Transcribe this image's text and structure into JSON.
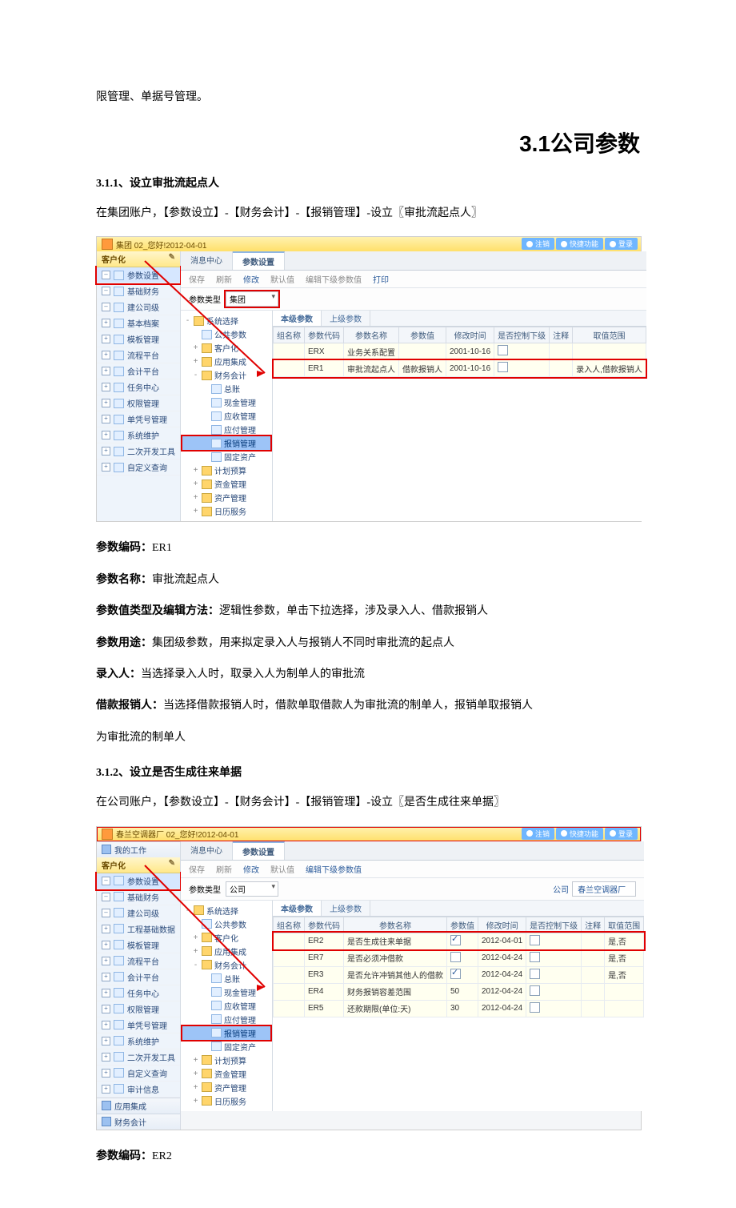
{
  "doc": {
    "top_line": "限管理、单据号管理。",
    "section_title": "3.1公司参数",
    "sub1_title": "3.1.1、设立审批流起点人",
    "sub1_intro": "在集团账户，【参数设立】-【财务会计】-【报销管理】-设立〖审批流起点人〗",
    "kv": {
      "code_label": "参数编码：",
      "code_val": "ER1",
      "name_label": "参数名称：",
      "name_val": "审批流起点人",
      "type_label": "参数值类型及编辑方法：",
      "type_val": "逻辑性参数，单击下拉选择，涉及录入人、借款报销人",
      "use_label": "参数用途：",
      "use_val": "集团级参数，用来拟定录入人与报销人不同时审批流的起点人",
      "in_label": "录入人：",
      "in_val": "当选择录入人时，取录入人为制单人的审批流",
      "bx_label": "借款报销人：",
      "bx_val": "当选择借款报销人时，借款单取借款人为审批流的制单人，报销单取报销人",
      "bx_val2": "为审批流的制单人"
    },
    "sub2_title": "3.1.2、设立是否生成往来单据",
    "sub2_intro": "在公司账户，【参数设立】-【财务会计】-【报销管理】-设立〖是否生成往来单据〗",
    "code2_label": "参数编码：",
    "code2_val": "ER2"
  },
  "shot1": {
    "title": "集团 02_您好!2012-04-01",
    "right_btns": [
      "注销",
      "快捷功能",
      "登录"
    ],
    "side_title": "客户化",
    "side_items": [
      "参数设置",
      "基础财务",
      "建公司级",
      "基本档案",
      "模板管理",
      "流程平台",
      "会计平台",
      "任务中心",
      "权限管理",
      "单凭号管理",
      "系统维护",
      "二次开发工具",
      "自定义查询"
    ],
    "side_selected_index": 0,
    "tabs": [
      "消息中心",
      "参数设置"
    ],
    "tabs_active": 1,
    "toolbar": [
      "保存",
      "刷新",
      "修改",
      "默认值",
      "编辑下级参数值",
      "打印"
    ],
    "toolbar_enabled": [
      false,
      false,
      true,
      false,
      false,
      true
    ],
    "param_label": "参数类型",
    "param_value": "集团",
    "tree": [
      {
        "t": "系统选择",
        "lvl": 0,
        "exp": "-",
        "ico": "fold"
      },
      {
        "t": "公共参数",
        "lvl": 1,
        "exp": "",
        "ico": "file"
      },
      {
        "t": "客户化",
        "lvl": 1,
        "exp": "+",
        "ico": "fold"
      },
      {
        "t": "应用集成",
        "lvl": 1,
        "exp": "+",
        "ico": "fold"
      },
      {
        "t": "财务会计",
        "lvl": 1,
        "exp": "-",
        "ico": "fold"
      },
      {
        "t": "总账",
        "lvl": 2,
        "exp": "",
        "ico": "file"
      },
      {
        "t": "现金管理",
        "lvl": 2,
        "exp": "",
        "ico": "file"
      },
      {
        "t": "应收管理",
        "lvl": 2,
        "exp": "",
        "ico": "file"
      },
      {
        "t": "应付管理",
        "lvl": 2,
        "exp": "",
        "ico": "file"
      },
      {
        "t": "报销管理",
        "lvl": 2,
        "exp": "",
        "ico": "file",
        "sel": true
      },
      {
        "t": "固定资产",
        "lvl": 2,
        "exp": "",
        "ico": "file"
      },
      {
        "t": "计划预算",
        "lvl": 1,
        "exp": "+",
        "ico": "fold"
      },
      {
        "t": "资金管理",
        "lvl": 1,
        "exp": "+",
        "ico": "fold"
      },
      {
        "t": "资产管理",
        "lvl": 1,
        "exp": "+",
        "ico": "fold"
      },
      {
        "t": "日历服务",
        "lvl": 1,
        "exp": "+",
        "ico": "fold"
      }
    ],
    "inner_tabs": [
      "本级参数",
      "上级参数"
    ],
    "inner_active": 0,
    "grid_cols": [
      "组名称",
      "参数代码",
      "参数名称",
      "参数值",
      "修改时间",
      "是否控制下级",
      "注释",
      "取值范围"
    ],
    "grid_rows": [
      {
        "cells": [
          "",
          "ERX",
          "业务关系配置",
          "",
          "2001-10-16",
          "cb",
          "",
          ""
        ],
        "hl": false
      },
      {
        "cells": [
          "",
          "ER1",
          "审批流起点人",
          "借款报销人",
          "2001-10-16",
          "cb",
          "",
          "录入人,借款报销人"
        ],
        "hl": true
      }
    ]
  },
  "shot2": {
    "title": "春兰空调器厂 02_您好!2012-04-01",
    "right_btns": [
      "注销",
      "快捷功能",
      "登录"
    ],
    "side_title_top": "我的工作",
    "side_title": "客户化",
    "side_items": [
      "参数设置",
      "基础财务",
      "建公司级",
      "工程基础数据",
      "模板管理",
      "流程平台",
      "会计平台",
      "任务中心",
      "权限管理",
      "单凭号管理",
      "系统维护",
      "二次开发工具",
      "自定义查询",
      "审计信息"
    ],
    "side_selected_index": 0,
    "side_footer": [
      "应用集成",
      "财务会计"
    ],
    "tabs": [
      "消息中心",
      "参数设置"
    ],
    "tabs_active": 1,
    "toolbar": [
      "保存",
      "刷新",
      "修改",
      "默认值",
      "编辑下级参数值"
    ],
    "toolbar_enabled": [
      false,
      false,
      true,
      false,
      true
    ],
    "param_label": "参数类型",
    "param_value": "公司",
    "company_label": "公司",
    "company_value": "春兰空调器厂",
    "tree": [
      {
        "t": "系统选择",
        "lvl": 0,
        "exp": "-",
        "ico": "fold"
      },
      {
        "t": "公共参数",
        "lvl": 1,
        "exp": "",
        "ico": "file"
      },
      {
        "t": "客户化",
        "lvl": 1,
        "exp": "+",
        "ico": "fold"
      },
      {
        "t": "应用集成",
        "lvl": 1,
        "exp": "+",
        "ico": "fold"
      },
      {
        "t": "财务会计",
        "lvl": 1,
        "exp": "-",
        "ico": "fold"
      },
      {
        "t": "总账",
        "lvl": 2,
        "exp": "",
        "ico": "file"
      },
      {
        "t": "现金管理",
        "lvl": 2,
        "exp": "",
        "ico": "file"
      },
      {
        "t": "应收管理",
        "lvl": 2,
        "exp": "",
        "ico": "file"
      },
      {
        "t": "应付管理",
        "lvl": 2,
        "exp": "",
        "ico": "file"
      },
      {
        "t": "报销管理",
        "lvl": 2,
        "exp": "",
        "ico": "file",
        "sel": true
      },
      {
        "t": "固定资产",
        "lvl": 2,
        "exp": "",
        "ico": "file"
      },
      {
        "t": "计划预算",
        "lvl": 1,
        "exp": "+",
        "ico": "fold"
      },
      {
        "t": "资金管理",
        "lvl": 1,
        "exp": "+",
        "ico": "fold"
      },
      {
        "t": "资产管理",
        "lvl": 1,
        "exp": "+",
        "ico": "fold"
      },
      {
        "t": "日历服务",
        "lvl": 1,
        "exp": "+",
        "ico": "fold"
      }
    ],
    "inner_tabs": [
      "本级参数",
      "上级参数"
    ],
    "inner_active": 0,
    "grid_cols": [
      "组名称",
      "参数代码",
      "参数名称",
      "参数值",
      "修改时间",
      "是否控制下级",
      "注释",
      "取值范围"
    ],
    "grid_rows": [
      {
        "cells": [
          "",
          "ER2",
          "是否生成往来单据",
          "cbc",
          "2012-04-01",
          "cb",
          "",
          "是,否"
        ],
        "hl": true
      },
      {
        "cells": [
          "",
          "ER7",
          "是否必须冲借款",
          "cb",
          "2012-04-24",
          "cb",
          "",
          "是,否"
        ],
        "hl": false
      },
      {
        "cells": [
          "",
          "ER3",
          "是否允许冲销其他人的借款",
          "cbc",
          "2012-04-24",
          "cb",
          "",
          "是,否"
        ],
        "hl": false
      },
      {
        "cells": [
          "",
          "ER4",
          "财务报销容差范围",
          "50",
          "2012-04-24",
          "cb",
          "",
          ""
        ],
        "hl": false
      },
      {
        "cells": [
          "",
          "ER5",
          "还款期限(单位:天)",
          "30",
          "2012-04-24",
          "cb",
          "",
          ""
        ],
        "hl": false
      }
    ]
  }
}
